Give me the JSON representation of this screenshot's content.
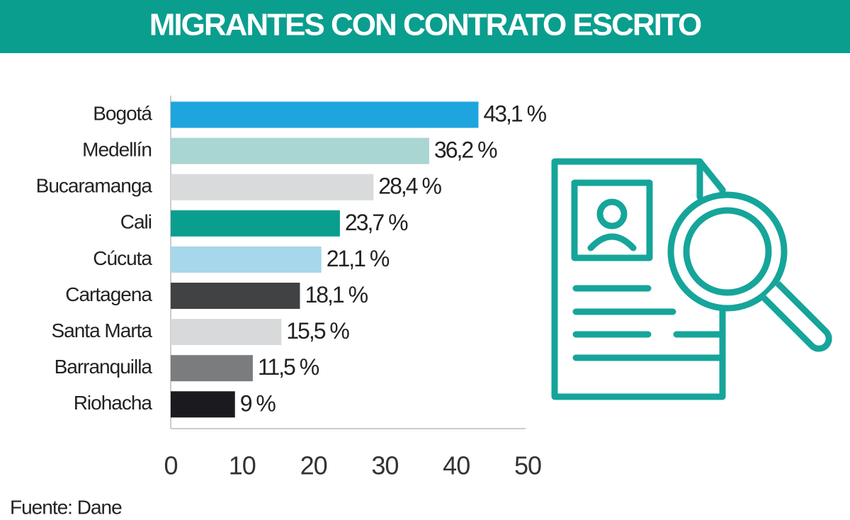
{
  "chart_data": {
    "type": "bar",
    "orientation": "horizontal",
    "title": "MIGRANTES CON CONTRATO ESCRITO",
    "categories": [
      "Bogotá",
      "Medellín",
      "Bucaramanga",
      "Cali",
      "Cúcuta",
      "Cartagena",
      "Santa Marta",
      "Barranquilla",
      "Riohacha"
    ],
    "values": [
      43.1,
      36.2,
      28.4,
      23.7,
      21.1,
      18.1,
      15.5,
      11.5,
      9
    ],
    "value_labels": [
      "43,1 %",
      "36,2 %",
      "28,4 %",
      "23,7 %",
      "21,1 %",
      "18,1 %",
      "15,5 %",
      "11,5 %",
      "9 %"
    ],
    "colors": [
      "#1ea5de",
      "#a9d6d2",
      "#d9dadc",
      "#0a9e8f",
      "#a6d7ea",
      "#414243",
      "#d8d9db",
      "#7b7c7e",
      "#1b1a1f"
    ],
    "xlim": [
      0,
      50
    ],
    "xticks": [
      0,
      10,
      20,
      30,
      40,
      50
    ],
    "source": "Fuente: Dane"
  }
}
